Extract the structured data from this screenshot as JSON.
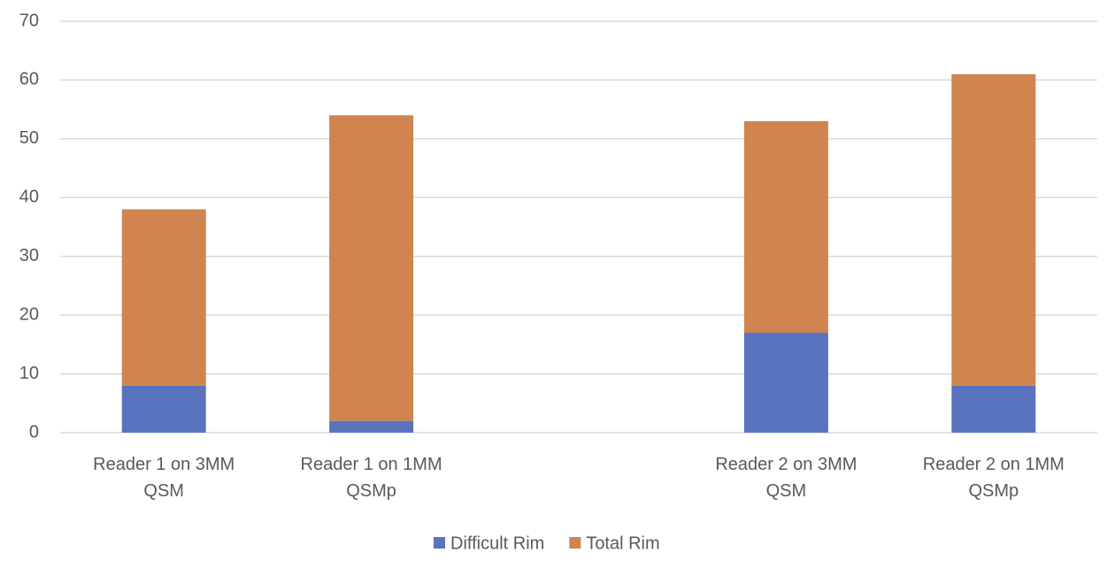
{
  "chart_data": {
    "type": "stacked_bar",
    "categories": [
      "Reader 1 on 3MM QSM",
      "Reader 1 on 1MM QSMp",
      null,
      "Reader 2 on 3MM QSM",
      "Reader 2 on 1MM QSMp"
    ],
    "series": [
      {
        "name": "Difficult Rim",
        "color": "#5a73bf",
        "values": [
          8,
          2,
          null,
          17,
          8
        ]
      },
      {
        "name": "Total Rim",
        "color": "#d0844f",
        "values": [
          30,
          52,
          null,
          36,
          53
        ]
      }
    ],
    "ylim": [
      0,
      70
    ],
    "yticks": [
      0,
      10,
      20,
      30,
      40,
      50,
      60,
      70
    ],
    "grid": true,
    "legend": "bottom"
  }
}
